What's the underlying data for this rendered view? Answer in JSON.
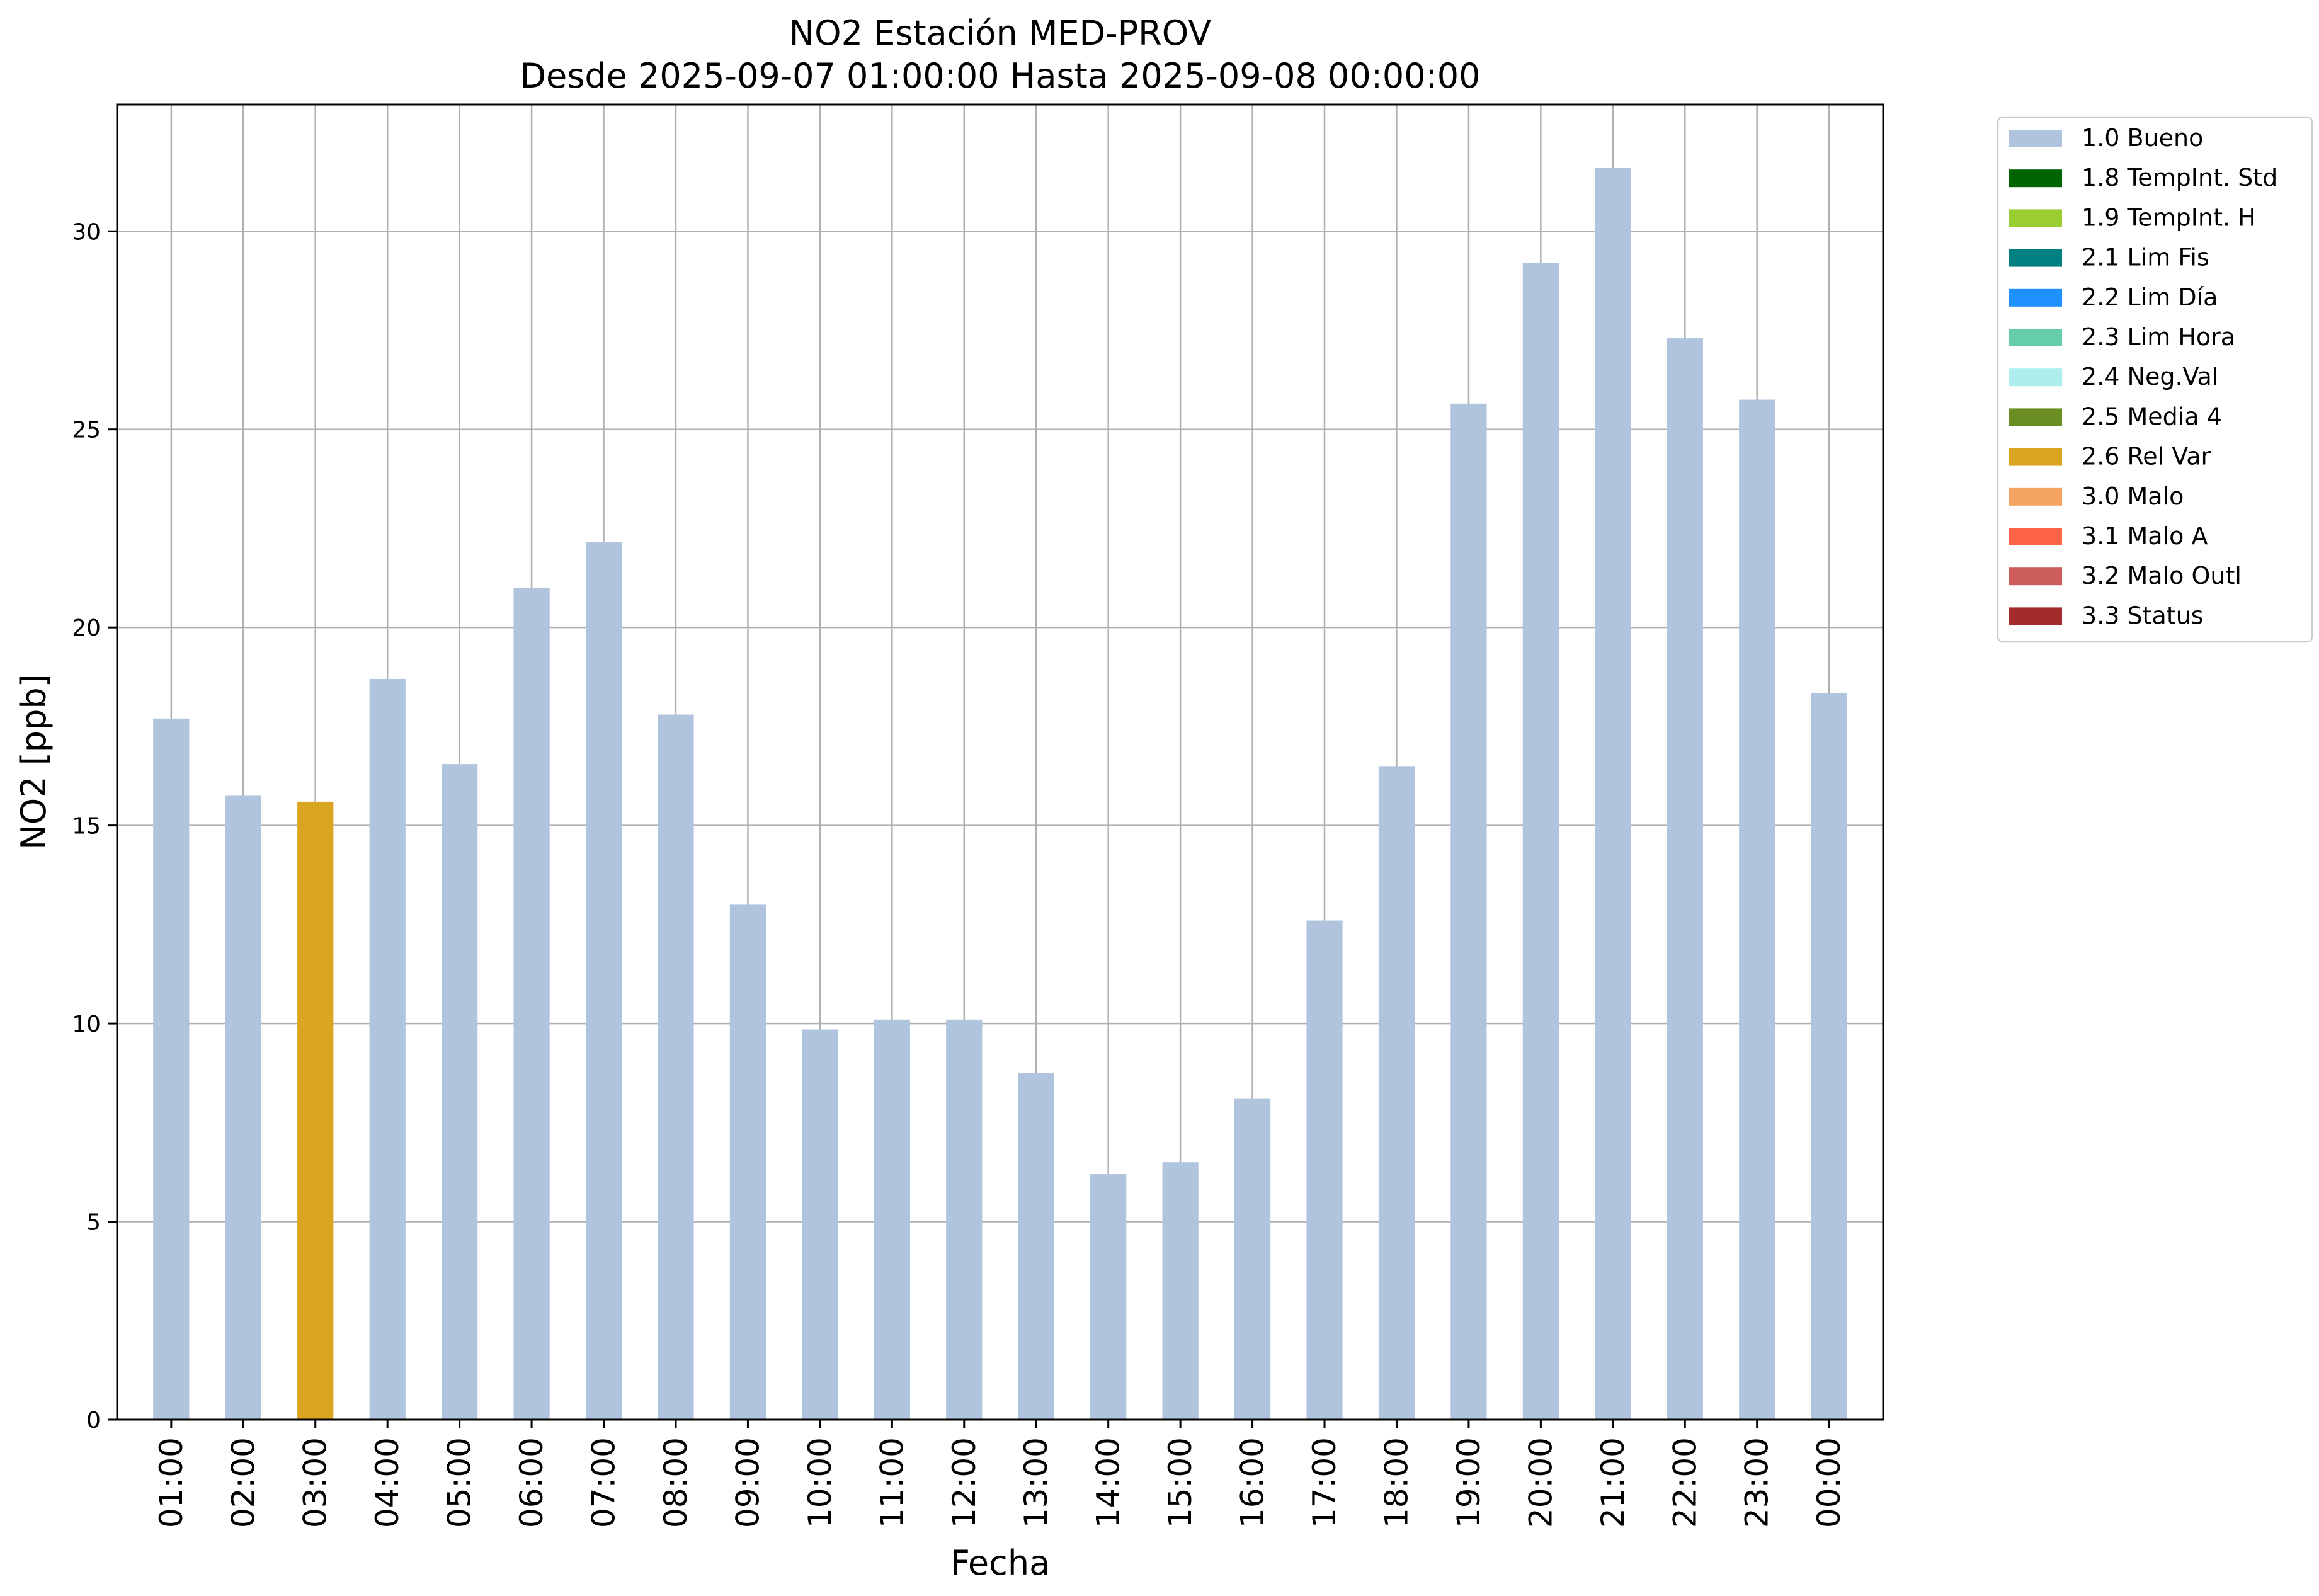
{
  "chart_data": {
    "type": "bar",
    "title_line1": "NO2 Estación MED-PROV",
    "title_line2": "Desde 2025-09-07 01:00:00 Hasta 2025-09-08 00:00:00",
    "xlabel": "Fecha",
    "ylabel": "NO2 [ppb]",
    "ylim": [
      0,
      33.2
    ],
    "yticks": [
      0,
      5,
      10,
      15,
      20,
      25,
      30
    ],
    "grid": true,
    "legend_position": "outside-right",
    "categories": [
      "01:00",
      "02:00",
      "03:00",
      "04:00",
      "05:00",
      "06:00",
      "07:00",
      "08:00",
      "09:00",
      "10:00",
      "11:00",
      "12:00",
      "13:00",
      "14:00",
      "15:00",
      "16:00",
      "17:00",
      "18:00",
      "19:00",
      "20:00",
      "21:00",
      "22:00",
      "23:00",
      "00:00"
    ],
    "values": [
      17.7,
      15.75,
      15.6,
      18.7,
      16.55,
      21.0,
      22.15,
      17.8,
      13.0,
      9.85,
      10.1,
      10.1,
      8.75,
      6.2,
      6.5,
      8.1,
      12.6,
      16.5,
      25.65,
      29.2,
      31.6,
      27.3,
      25.75,
      18.35
    ],
    "flags": [
      "1.0 Bueno",
      "1.0 Bueno",
      "2.6 Rel Var",
      "1.0 Bueno",
      "1.0 Bueno",
      "1.0 Bueno",
      "1.0 Bueno",
      "1.0 Bueno",
      "1.0 Bueno",
      "1.0 Bueno",
      "1.0 Bueno",
      "1.0 Bueno",
      "1.0 Bueno",
      "1.0 Bueno",
      "1.0 Bueno",
      "1.0 Bueno",
      "1.0 Bueno",
      "1.0 Bueno",
      "1.0 Bueno",
      "1.0 Bueno",
      "1.0 Bueno",
      "1.0 Bueno",
      "1.0 Bueno",
      "1.0 Bueno"
    ],
    "legend": [
      {
        "label": "1.0 Bueno",
        "color": "#b0c4de"
      },
      {
        "label": "1.8 TempInt. Std",
        "color": "#006400"
      },
      {
        "label": "1.9 TempInt. H",
        "color": "#9acd32"
      },
      {
        "label": "2.1 Lim Fis",
        "color": "#008080"
      },
      {
        "label": "2.2 Lim Día",
        "color": "#1e90ff"
      },
      {
        "label": "2.3 Lim Hora",
        "color": "#66cdaa"
      },
      {
        "label": "2.4 Neg.Val",
        "color": "#afeeee"
      },
      {
        "label": "2.5 Media 4",
        "color": "#6b8e23"
      },
      {
        "label": "2.6 Rel Var",
        "color": "#daa520"
      },
      {
        "label": "3.0 Malo",
        "color": "#f4a460"
      },
      {
        "label": "3.1 Malo A",
        "color": "#ff6347"
      },
      {
        "label": "3.2 Malo Outl",
        "color": "#cd5c5c"
      },
      {
        "label": "3.3 Status",
        "color": "#a52a2a"
      }
    ]
  }
}
